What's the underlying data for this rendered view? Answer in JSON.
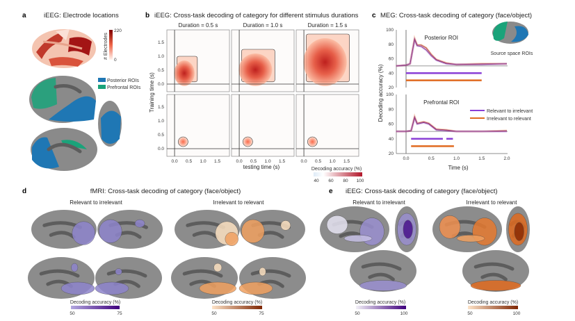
{
  "panel_a": {
    "label": "a",
    "title": "iEEG: Electrode locations",
    "colorbar": {
      "label": "# Electrodes",
      "max": "220",
      "min": "0",
      "colors": [
        "#fbe7e0",
        "#e34a33",
        "#7f0000"
      ]
    },
    "legend": [
      {
        "label": "Posterior ROIs",
        "color": "#1f77b4"
      },
      {
        "label": "Prefrontal ROIs",
        "color": "#1aa37a"
      }
    ]
  },
  "panel_b": {
    "label": "b",
    "title": "iEEG: Cross-task decoding of category for different stimulus durations",
    "durations": [
      "Duration = 0.5 s",
      "Duration = 1.0 s",
      "Duration = 1.5 s"
    ],
    "ylabel": "Training time (s)",
    "xlabel": "testing time (s)",
    "xticks": [
      "0.0",
      "0.5",
      "1.0",
      "1.5"
    ],
    "yticks": [
      "0.0",
      "0.5",
      "1.0",
      "1.5"
    ],
    "colorbar": {
      "label": "Decoding accuracy (%)",
      "ticks": [
        "40",
        "60",
        "80",
        "100"
      ]
    }
  },
  "panel_c": {
    "label": "c",
    "title": "MEG: Cross-task decoding of category (face/object)",
    "inset_label": "Source space ROIs",
    "ylabel": "Decoding accuracy (%)",
    "xlabel": "Time (s)",
    "colors": {
      "relevant_to_irrelevant": "#8a3fd6",
      "irrelevant_to_relevant": "#e06a1f"
    }
  },
  "panel_d": {
    "label": "d",
    "title": "fMRI: Cross-task decoding of category (face/object)",
    "left_title": "Relevant to irrelevant",
    "right_title": "Irrelevant to relevant",
    "left_colorbar": {
      "label": "Decoding accuracy (%)",
      "min": "50",
      "max": "75",
      "colors": [
        "#b3a8e0",
        "#3f007d"
      ]
    },
    "right_colorbar": {
      "label": "Decoding accuracy (%)",
      "min": "50",
      "max": "75",
      "colors": [
        "#fde3c8",
        "#7f2704"
      ]
    }
  },
  "panel_e": {
    "label": "e",
    "title": "iEEG: Cross-task decoding of category (face/object)",
    "left_title": "Relevant to irrelevant",
    "right_title": "Irrelevant to relevant",
    "left_colorbar": {
      "label": "Decoding accuracy (%)",
      "min": "50",
      "max": "100",
      "colors": [
        "#f2f0f7",
        "#3f007d"
      ]
    },
    "right_colorbar": {
      "label": "Decoding accuracy (%)",
      "min": "50",
      "max": "100",
      "colors": [
        "#fde3c8",
        "#7f2704"
      ]
    }
  },
  "chart_data": [
    {
      "type": "line",
      "title": "Posterior ROI",
      "xlabel": "Time (s)",
      "ylabel": "Decoding accuracy (%)",
      "xlim": [
        -0.2,
        2.0
      ],
      "ylim": [
        20,
        100
      ],
      "xticks": [
        "0.0",
        "0.5",
        "1.0",
        "1.5",
        "2.0"
      ],
      "yticks": [
        "20",
        "40",
        "60",
        "80",
        "100"
      ],
      "chance": 50,
      "series": [
        {
          "name": "Relevant to irrelevant",
          "x": [
            -0.2,
            0.0,
            0.08,
            0.17,
            0.22,
            0.3,
            0.4,
            0.5,
            0.6,
            0.8,
            1.0,
            1.5,
            2.0
          ],
          "y": [
            50,
            51,
            53,
            86,
            78,
            77,
            72,
            64,
            58,
            53,
            52,
            52,
            53
          ]
        },
        {
          "name": "Irrelevant to relevant",
          "x": [
            -0.2,
            0.0,
            0.08,
            0.17,
            0.22,
            0.3,
            0.4,
            0.5,
            0.6,
            0.8,
            1.0,
            1.5,
            2.0
          ],
          "y": [
            50,
            51,
            53,
            88,
            79,
            79,
            75,
            66,
            59,
            54,
            52,
            53,
            53
          ]
        }
      ],
      "significance": [
        {
          "name": "Relevant to irrelevant",
          "level": 40,
          "intervals": [
            [
              0.0,
              1.5
            ]
          ]
        },
        {
          "name": "Irrelevant to relevant",
          "level": 30,
          "intervals": [
            [
              0.0,
              1.5
            ]
          ]
        }
      ]
    },
    {
      "type": "line",
      "title": "Prefrontal ROI",
      "xlabel": "Time (s)",
      "ylabel": "Decoding accuracy (%)",
      "xlim": [
        -0.2,
        2.0
      ],
      "ylim": [
        20,
        100
      ],
      "xticks": [
        "0.0",
        "0.5",
        "1.0",
        "1.5",
        "2.0"
      ],
      "yticks": [
        "20",
        "40",
        "60",
        "80",
        "100"
      ],
      "chance": 50,
      "series": [
        {
          "name": "Relevant to irrelevant",
          "x": [
            -0.2,
            0.0,
            0.1,
            0.17,
            0.22,
            0.35,
            0.45,
            0.6,
            0.8,
            1.0,
            1.5,
            2.0
          ],
          "y": [
            50,
            50,
            51,
            68,
            60,
            62,
            60,
            52,
            51,
            50,
            50,
            50
          ]
        },
        {
          "name": "Irrelevant to relevant",
          "x": [
            -0.2,
            0.0,
            0.1,
            0.17,
            0.22,
            0.35,
            0.45,
            0.6,
            0.8,
            1.0,
            1.5,
            2.0
          ],
          "y": [
            50,
            50,
            51,
            70,
            61,
            63,
            61,
            53,
            52,
            50,
            50,
            51
          ]
        }
      ],
      "significance": [
        {
          "name": "Relevant to irrelevant",
          "level": 40,
          "intervals": [
            [
              0.1,
              0.73
            ],
            [
              0.8,
              0.93
            ]
          ]
        },
        {
          "name": "Irrelevant to relevant",
          "level": 30,
          "intervals": [
            [
              0.1,
              0.95
            ]
          ]
        }
      ]
    }
  ]
}
